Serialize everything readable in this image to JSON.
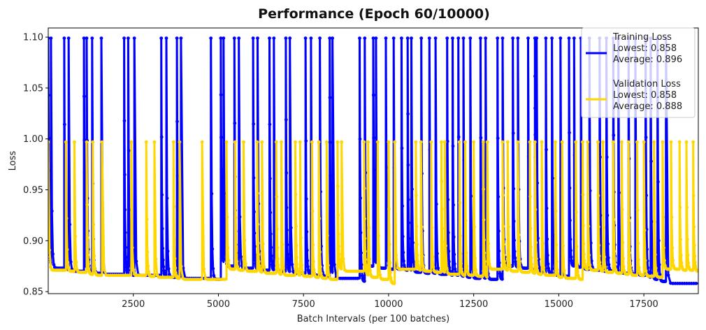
{
  "chart_data": {
    "type": "line",
    "title": "Performance (Epoch 60/10000)",
    "xlabel": "Batch Intervals (per 100 batches)",
    "ylabel": "Loss",
    "xlim": [
      0,
      19100
    ],
    "ylim": [
      0.848,
      1.109
    ],
    "x_ticks": [
      2500,
      5000,
      7500,
      10000,
      12500,
      15000,
      17500
    ],
    "x_tick_labels": [
      "2500",
      "5000",
      "7500",
      "10000",
      "12500",
      "15000",
      "17500"
    ],
    "y_ticks": [
      0.85,
      0.9,
      0.95,
      1.0,
      1.05,
      1.1
    ],
    "y_tick_labels": [
      "0.85",
      "0.90",
      "0.95",
      "1.00",
      "1.05",
      "1.10"
    ],
    "grid": false,
    "legend_position": "top-right",
    "legend": [
      {
        "lines": [
          "Training Loss",
          "Lowest: 0.858",
          "Average: 0.896"
        ]
      },
      {
        "lines": [
          "Validation Loss",
          "Lowest: 0.858",
          "Average: 0.888"
        ]
      }
    ],
    "series": [
      {
        "name": "Training Loss",
        "color": "#0000ff",
        "peak": 1.099,
        "decay_per_unit": 0.05,
        "restart_x": [
          0,
          80,
          470,
          600,
          1050,
          1130,
          1290,
          1560,
          2230,
          2350,
          2530,
          3320,
          3470,
          3780,
          3900,
          4780,
          5070,
          5150,
          5470,
          5600,
          6020,
          6150,
          6500,
          6630,
          6980,
          7100,
          7560,
          7720,
          7980,
          8270,
          8350,
          9150,
          9300,
          9550,
          9630,
          9920,
          10150,
          10380,
          10560,
          10670,
          10960,
          11200,
          11380,
          11720,
          11880,
          12050,
          12200,
          12400,
          12700,
          12850,
          13200,
          13350,
          13650,
          13800,
          14100,
          14300,
          14350,
          14620,
          14800,
          15050,
          15300,
          15450,
          15650,
          15900,
          16200,
          16400,
          16600,
          16750,
          17050,
          17250,
          17550,
          17700,
          17900,
          18150
        ],
        "floor": [
          0.873,
          0.873,
          0.871,
          0.87,
          0.869,
          0.868,
          0.868,
          0.867,
          0.866,
          0.866,
          0.866,
          0.865,
          0.864,
          0.864,
          0.863,
          0.862,
          0.875,
          0.875,
          0.874,
          0.873,
          0.872,
          0.871,
          0.871,
          0.87,
          0.869,
          0.868,
          0.867,
          0.866,
          0.865,
          0.864,
          0.863,
          0.86,
          0.875,
          0.874,
          0.873,
          0.872,
          0.872,
          0.871,
          0.87,
          0.869,
          0.868,
          0.868,
          0.867,
          0.866,
          0.866,
          0.865,
          0.864,
          0.863,
          0.863,
          0.862,
          0.862,
          0.875,
          0.874,
          0.873,
          0.871,
          0.87,
          0.869,
          0.868,
          0.866,
          0.865,
          0.875,
          0.874,
          0.872,
          0.871,
          0.87,
          0.87,
          0.869,
          0.868,
          0.867,
          0.866,
          0.864,
          0.862,
          0.86,
          0.858
        ],
        "end_x": 19100
      },
      {
        "name": "Validation Loss",
        "color": "#ffd700",
        "peak": 0.997,
        "decay_per_unit": 0.05,
        "restart_x": [
          0,
          520,
          770,
          1130,
          1310,
          1580,
          2440,
          2880,
          3120,
          3680,
          3860,
          4520,
          5240,
          5490,
          5740,
          6140,
          6280,
          6700,
          6850,
          7260,
          7400,
          7750,
          7950,
          8180,
          8500,
          8620,
          9280,
          9400,
          9680,
          10000,
          10180,
          10800,
          10950,
          11250,
          11550,
          11650,
          12080,
          12250,
          12500,
          12780,
          12900,
          13350,
          13500,
          13800,
          14150,
          14300,
          14500,
          14900,
          15100,
          15500,
          15700,
          15850,
          16150,
          16300,
          16600,
          16850,
          17050,
          17300,
          17500,
          17800,
          18050,
          18300,
          18550,
          18750,
          18950
        ],
        "floor": [
          0.871,
          0.87,
          0.869,
          0.867,
          0.866,
          0.866,
          0.866,
          0.865,
          0.864,
          0.863,
          0.862,
          0.862,
          0.872,
          0.871,
          0.87,
          0.869,
          0.868,
          0.867,
          0.866,
          0.866,
          0.865,
          0.864,
          0.863,
          0.862,
          0.872,
          0.87,
          0.866,
          0.864,
          0.862,
          0.858,
          0.872,
          0.871,
          0.87,
          0.869,
          0.868,
          0.867,
          0.866,
          0.866,
          0.865,
          0.864,
          0.872,
          0.871,
          0.87,
          0.869,
          0.868,
          0.867,
          0.866,
          0.864,
          0.863,
          0.862,
          0.872,
          0.871,
          0.87,
          0.869,
          0.868,
          0.867,
          0.866,
          0.866,
          0.865,
          0.864,
          0.872,
          0.872,
          0.871,
          0.871,
          0.87
        ],
        "end_x": 19100
      }
    ]
  }
}
